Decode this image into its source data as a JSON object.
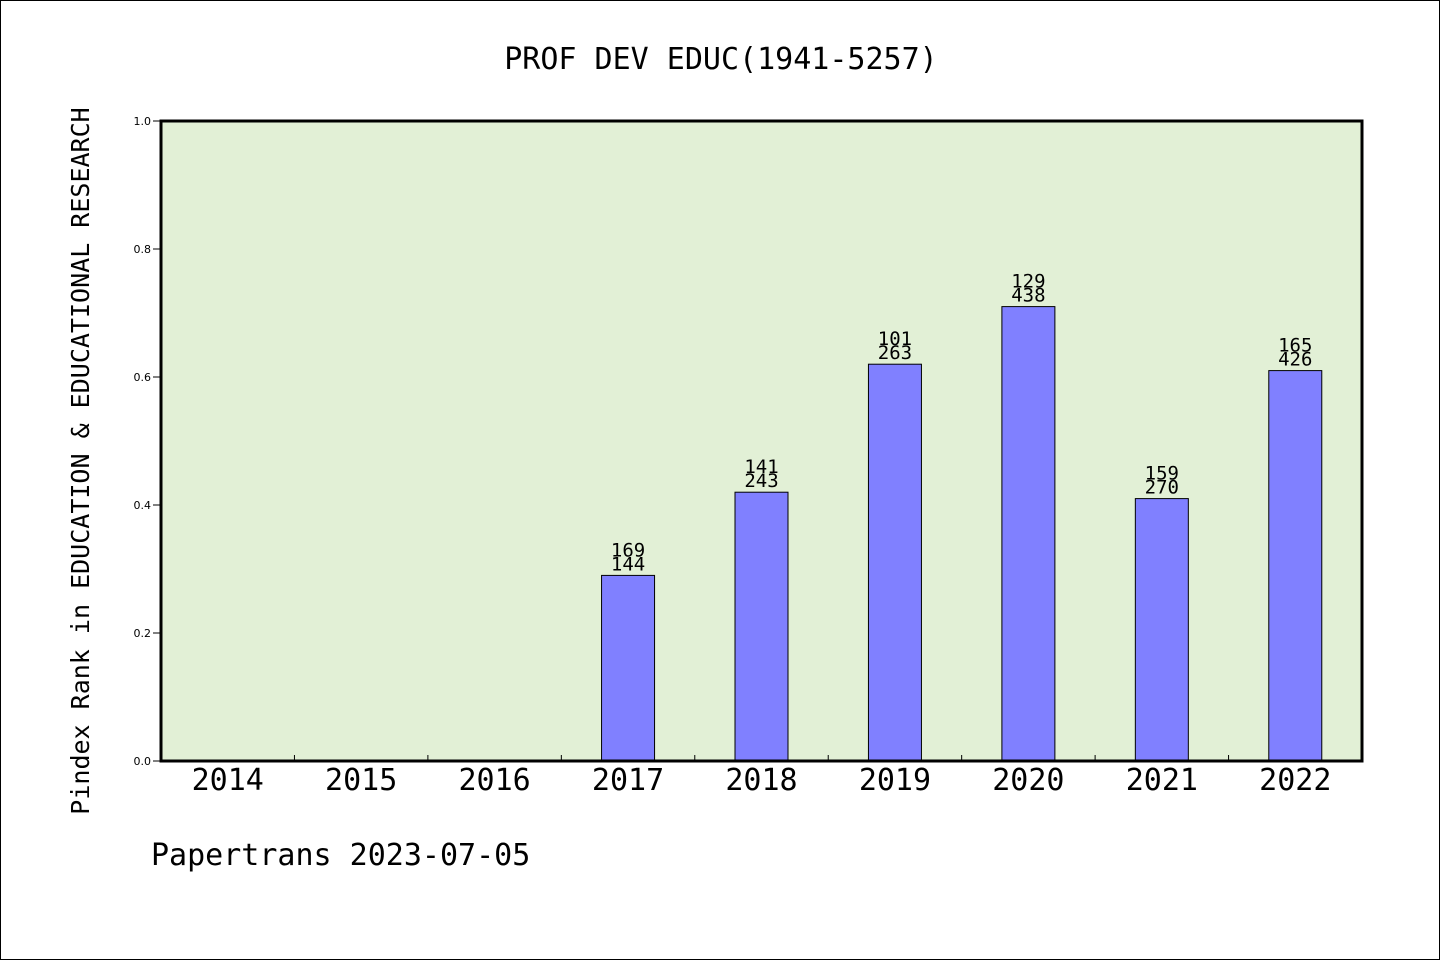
{
  "chart_data": {
    "type": "bar",
    "title": "PROF DEV EDUC(1941-5257)",
    "ylabel": "Pindex Rank in EDUCATION & EDUCATIONAL RESEARCH",
    "xlabel": "",
    "categories": [
      "2014",
      "2015",
      "2016",
      "2017",
      "2018",
      "2019",
      "2020",
      "2021",
      "2022"
    ],
    "values": [
      null,
      null,
      null,
      0.29,
      0.42,
      0.62,
      0.71,
      0.41,
      0.61
    ],
    "labels_top": [
      "",
      "",
      "",
      "169",
      "141",
      "101",
      "129",
      "159",
      "165"
    ],
    "labels_bottom": [
      "",
      "",
      "",
      "144",
      "243",
      "263",
      "438",
      "270",
      "426"
    ],
    "ylim": [
      0,
      1.0
    ],
    "yticks": [
      "0.0",
      "0.2",
      "0.4",
      "0.6",
      "0.8",
      "1.0"
    ],
    "grid": false,
    "footer": "Papertrans 2023-07-05",
    "colors": {
      "plot_background": "#e2f0d6",
      "bar_fill": "#8080ff",
      "bar_stroke": "#000000",
      "axis": "#000000",
      "text": "#000000"
    }
  }
}
